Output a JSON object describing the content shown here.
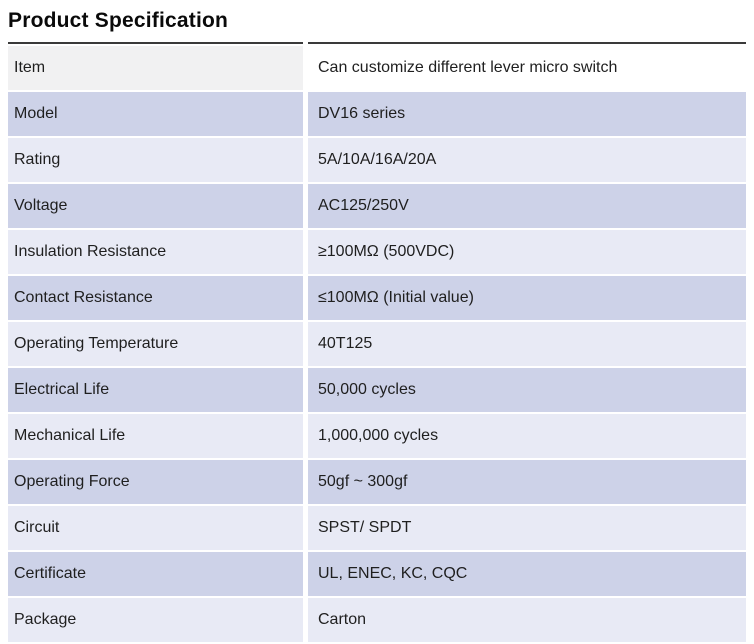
{
  "title": "Product Specification",
  "colors": {
    "row_dark": "#cdd2e8",
    "row_light": "#e8eaf5",
    "first_row_label_bg": "#f1f1f2",
    "first_row_value_bg": "#ffffff",
    "top_rule": "#3a3a3a",
    "text": "#1f1f1f"
  },
  "spec_table": {
    "rows": [
      {
        "label": "Item",
        "value": "Can customize different lever micro switch"
      },
      {
        "label": "Model",
        "value": "DV16 series"
      },
      {
        "label": "Rating",
        "value": "5A/10A/16A/20A"
      },
      {
        "label": "Voltage",
        "value": "AC125/250V"
      },
      {
        "label": "Insulation Resistance",
        "value": "≥100MΩ (500VDC)"
      },
      {
        "label": "Contact Resistance",
        "value": "≤100MΩ (Initial value)"
      },
      {
        "label": "Operating Temperature",
        "value": "40T125"
      },
      {
        "label": "Electrical Life",
        "value": "50,000 cycles"
      },
      {
        "label": "Mechanical Life",
        "value": "1,000,000 cycles"
      },
      {
        "label": "Operating Force",
        "value": "50gf ~ 300gf"
      },
      {
        "label": "Circuit",
        "value": "SPST/ SPDT"
      },
      {
        "label": "Certificate",
        "value": "UL, ENEC, KC, CQC"
      },
      {
        "label": "Package",
        "value": "Carton"
      }
    ]
  }
}
